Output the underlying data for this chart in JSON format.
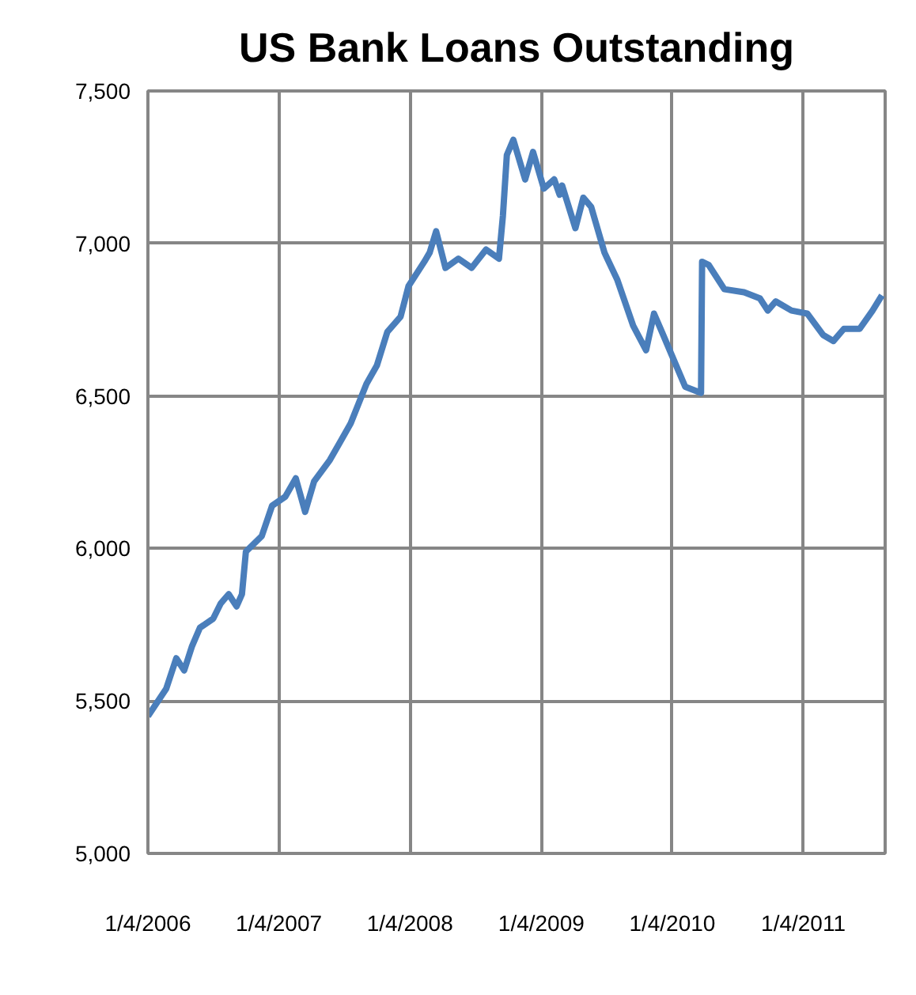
{
  "chart_data": {
    "type": "line",
    "title": "US Bank Loans Outstanding",
    "x": [
      "2006-01-04",
      "2006-02-24",
      "2006-03-24",
      "2006-04-15",
      "2006-05-07",
      "2006-05-29",
      "2006-07-05",
      "2006-07-26",
      "2006-08-17",
      "2006-09-08",
      "2006-09-23",
      "2006-10-04",
      "2006-11-17",
      "2006-12-16",
      "2007-01-22",
      "2007-02-20",
      "2007-03-18",
      "2007-04-12",
      "2007-05-26",
      "2007-06-24",
      "2007-07-23",
      "2007-09-05",
      "2007-10-04",
      "2007-11-02",
      "2007-12-09",
      "2007-12-31",
      "2008-01-22",
      "2008-02-13",
      "2008-02-28",
      "2008-03-17",
      "2008-04-12",
      "2008-05-18",
      "2008-06-24",
      "2008-08-03",
      "2008-09-08",
      "2008-09-19",
      "2008-09-30",
      "2008-10-18",
      "2008-11-20",
      "2008-12-12",
      "2009-01-11",
      "2009-02-09",
      "2009-02-24",
      "2009-03-03",
      "2009-04-09",
      "2009-05-01",
      "2009-05-23",
      "2009-06-29",
      "2009-08-04",
      "2009-09-17",
      "2009-10-23",
      "2009-11-14",
      "2009-12-06",
      "2010-01-11",
      "2010-02-09",
      "2010-03-25",
      "2010-03-28",
      "2010-04-15",
      "2010-05-29",
      "2010-07-23",
      "2010-09-05",
      "2010-09-27",
      "2010-10-19",
      "2010-12-02",
      "2011-01-15",
      "2011-02-28",
      "2011-03-29",
      "2011-04-27",
      "2011-06-10",
      "2011-07-16",
      "2011-08-11"
    ],
    "series": [
      {
        "color": "#4a7ebb",
        "values": [
          5450,
          5540,
          5640,
          5600,
          5680,
          5740,
          5770,
          5820,
          5850,
          5810,
          5850,
          5990,
          6040,
          6140,
          6170,
          6230,
          6120,
          6220,
          6290,
          6350,
          6410,
          6540,
          6600,
          6710,
          6760,
          6860,
          6900,
          6940,
          6970,
          7040,
          6920,
          6950,
          6920,
          6980,
          6950,
          7090,
          7290,
          7340,
          7210,
          7300,
          7180,
          7210,
          7160,
          7190,
          7050,
          7150,
          7120,
          6970,
          6880,
          6730,
          6650,
          6770,
          6710,
          6610,
          6530,
          6510,
          6940,
          6930,
          6850,
          6840,
          6820,
          6780,
          6810,
          6780,
          6770,
          6700,
          6680,
          6720,
          6720,
          6780,
          6830
        ]
      }
    ],
    "xlim": [
      "2006-01-04",
      "2011-08-20"
    ],
    "xticks": [
      {
        "value": "2006-01-04",
        "label": "1/4/2006"
      },
      {
        "value": "2007-01-04",
        "label": "1/4/2007"
      },
      {
        "value": "2008-01-04",
        "label": "1/4/2008"
      },
      {
        "value": "2009-01-04",
        "label": "1/4/2009"
      },
      {
        "value": "2010-01-04",
        "label": "1/4/2010"
      },
      {
        "value": "2011-01-04",
        "label": "1/4/2011"
      }
    ],
    "ylim": [
      5000,
      7500
    ],
    "yticks": [
      {
        "value": 5000,
        "label": "5,000"
      },
      {
        "value": 5500,
        "label": "5,500"
      },
      {
        "value": 6000,
        "label": "6,000"
      },
      {
        "value": 6500,
        "label": "6,500"
      },
      {
        "value": 7000,
        "label": "7,000"
      },
      {
        "value": 7500,
        "label": "7,500"
      }
    ],
    "grid": true,
    "marker": "none",
    "line_style": "solid"
  }
}
